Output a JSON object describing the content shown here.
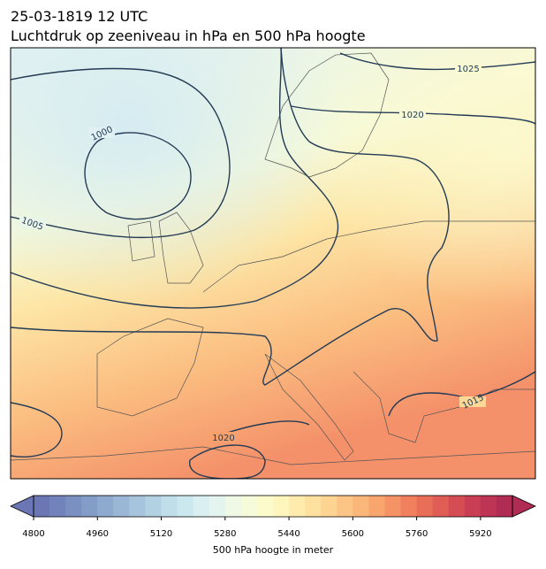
{
  "header": {
    "title": "25-03-1819 12 UTC",
    "subtitle": "Luchtdruk op zeeniveau in hPa en 500 hPa hoogte"
  },
  "isobar_labels": [
    "1000",
    "1005",
    "1020",
    "1025",
    "1015",
    "1020"
  ],
  "colorbar": {
    "label": "500 hPa hoogte in meter",
    "lim": [
      4800,
      6000
    ],
    "ticks": [
      4800,
      4960,
      5120,
      5280,
      5440,
      5600,
      5760,
      5920
    ],
    "extend": "both",
    "colors": [
      "#6b76b5",
      "#7283bb",
      "#7a90c1",
      "#839dc8",
      "#8eabcf",
      "#9ab8d6",
      "#a6c5dd",
      "#b2d2e4",
      "#bfdeea",
      "#cce8ef",
      "#d9eff2",
      "#e4f4ee",
      "#eef8e5",
      "#f6fbd9",
      "#fbfbcc",
      "#fff6bd",
      "#ffecad",
      "#fee19f",
      "#fdd492",
      "#fcc585",
      "#fbb679",
      "#f9a56e",
      "#f59366",
      "#f0805e",
      "#e96e58",
      "#e05d55",
      "#d54d53",
      "#c93e53",
      "#bd3454",
      "#b02c55"
    ]
  }
}
